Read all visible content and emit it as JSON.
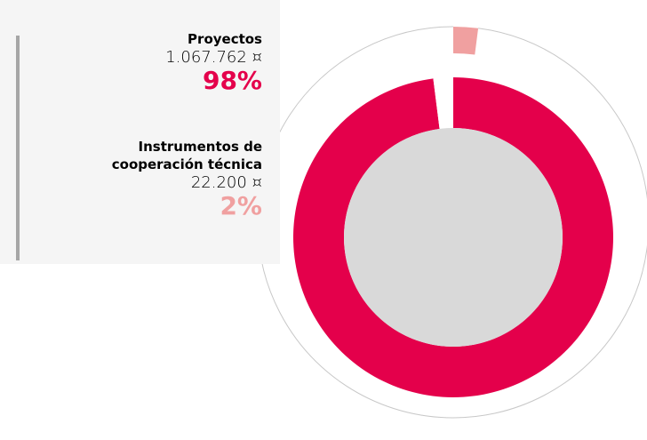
{
  "chart_data": {
    "type": "donut",
    "categories": [
      "Proyectos",
      "Instrumentos de cooperación técnica"
    ],
    "values": [
      98,
      2
    ],
    "value_labels": [
      "98%",
      "2%"
    ],
    "amounts": [
      1067762,
      22200
    ],
    "amount_labels": [
      "1.067.762 ¤",
      "22.200 ¤"
    ],
    "colors": [
      "#e4004b",
      "#f0a0a0"
    ]
  }
}
